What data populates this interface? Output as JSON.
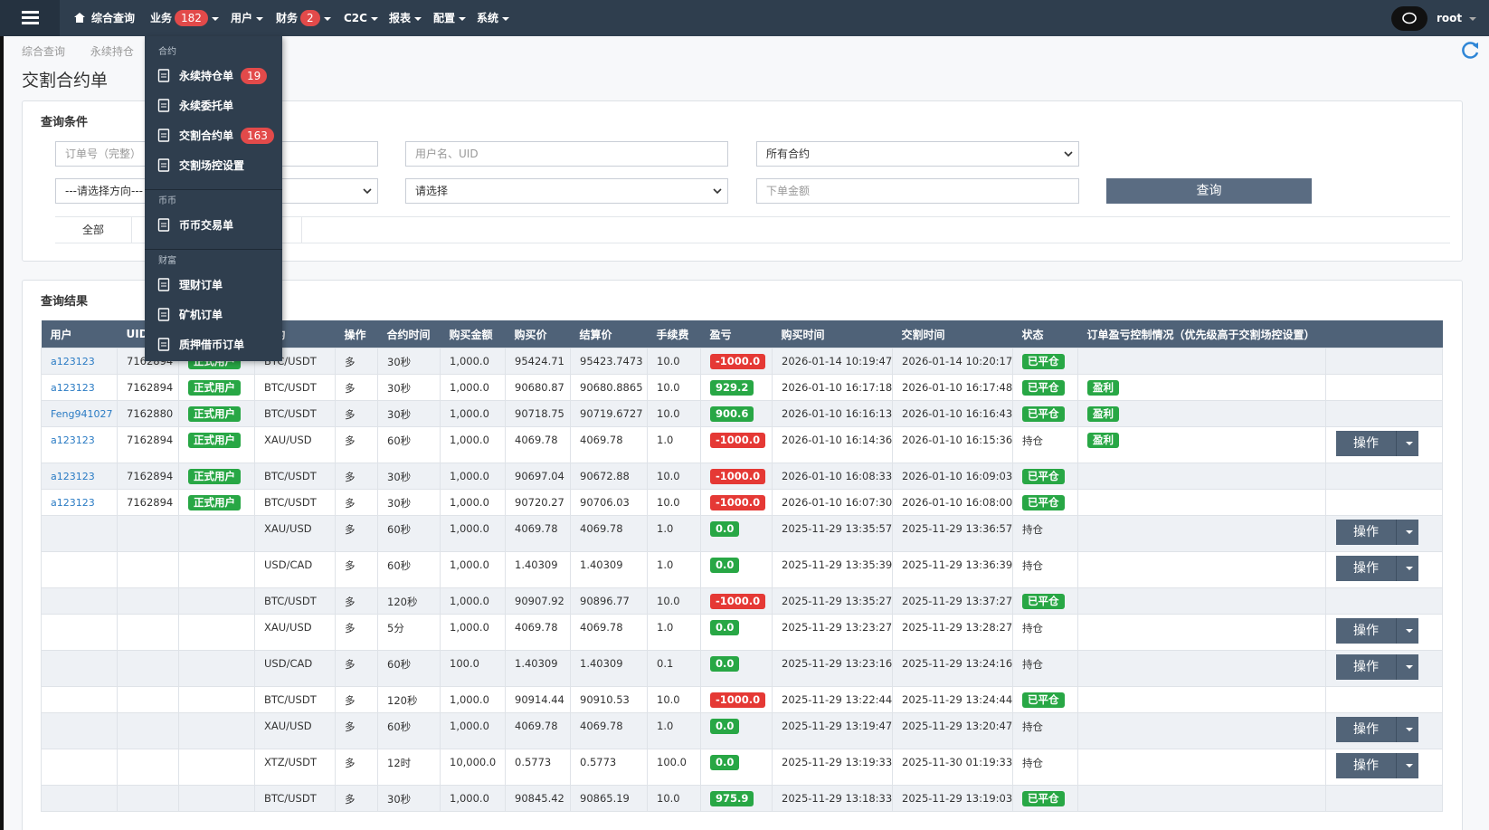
{
  "navbar": {
    "items": [
      {
        "label": "综合查询"
      },
      {
        "label": "业务",
        "badge": "182"
      },
      {
        "label": "用户"
      },
      {
        "label": "财务",
        "badge": "2"
      },
      {
        "label": "C2C"
      },
      {
        "label": "报表"
      },
      {
        "label": "配置"
      },
      {
        "label": "系统"
      }
    ],
    "user": "root"
  },
  "dropdown": {
    "sections": [
      {
        "title": "合约",
        "items": [
          {
            "label": "永续持仓单",
            "badge": "19"
          },
          {
            "label": "永续委托单"
          },
          {
            "label": "交割合约单",
            "badge": "163"
          },
          {
            "label": "交割场控设置"
          }
        ]
      },
      {
        "title": "币币",
        "items": [
          {
            "label": "币币交易单"
          }
        ]
      },
      {
        "title": "财富",
        "items": [
          {
            "label": "理财订单"
          },
          {
            "label": "矿机订单"
          },
          {
            "label": "质押借币订单"
          }
        ]
      }
    ]
  },
  "breadcrumb": [
    "综合查询",
    "永续持仓"
  ],
  "page_title": "交割合约单",
  "query": {
    "title": "查询条件",
    "order_placeholder": "订单号（完整）",
    "user_placeholder": "用户名、UID",
    "contract_select": "所有合约",
    "direction_select": "---请选择方向---",
    "status_select": "请选择",
    "amount_placeholder": "下单金额",
    "button": "查询",
    "tabs": [
      "全部"
    ]
  },
  "results": {
    "title": "查询结果",
    "headers": [
      "用户",
      "UID",
      null,
      "合约",
      "操作",
      "合约时间",
      "购买金额",
      "购买价",
      "结算价",
      "手续费",
      "盈亏",
      "购买时间",
      "交割时间",
      "状态",
      "订单盈亏控制情况（优先级高于交割场控设置）",
      null
    ],
    "rows": [
      [
        "a123123",
        "7162894",
        "正式用户",
        "BTC/USDT",
        "多",
        "30秒",
        "1,000.0",
        "95424.71",
        "95423.7473",
        "10.0",
        "-1000.0",
        "2026-01-14 10:19:47",
        "2026-01-14 10:20:17",
        "已平仓",
        null,
        null
      ],
      [
        "a123123",
        "7162894",
        "正式用户",
        "BTC/USDT",
        "多",
        "30秒",
        "1,000.0",
        "90680.87",
        "90680.8865",
        "10.0",
        "929.2",
        "2026-01-10 16:17:18",
        "2026-01-10 16:17:48",
        "已平仓",
        "盈利",
        null
      ],
      [
        "Feng941027",
        "7162880",
        "正式用户",
        "BTC/USDT",
        "多",
        "30秒",
        "1,000.0",
        "90718.75",
        "90719.6727",
        "10.0",
        "900.6",
        "2026-01-10 16:16:13",
        "2026-01-10 16:16:43",
        "已平仓",
        "盈利",
        null
      ],
      [
        "a123123",
        "7162894",
        "正式用户",
        "XAU/USD",
        "多",
        "60秒",
        "1,000.0",
        "4069.78",
        "4069.78",
        "1.0",
        "-1000.0",
        "2026-01-10 16:14:36",
        "2026-01-10 16:15:36",
        "持仓",
        "盈利",
        "操作"
      ],
      [
        "a123123",
        "7162894",
        "正式用户",
        "BTC/USDT",
        "多",
        "30秒",
        "1,000.0",
        "90697.04",
        "90672.88",
        "10.0",
        "-1000.0",
        "2026-01-10 16:08:33",
        "2026-01-10 16:09:03",
        "已平仓",
        null,
        null
      ],
      [
        "a123123",
        "7162894",
        "正式用户",
        "BTC/USDT",
        "多",
        "30秒",
        "1,000.0",
        "90720.27",
        "90706.03",
        "10.0",
        "-1000.0",
        "2026-01-10 16:07:30",
        "2026-01-10 16:08:00",
        "已平仓",
        null,
        null
      ],
      [
        null,
        null,
        null,
        "XAU/USD",
        "多",
        "60秒",
        "1,000.0",
        "4069.78",
        "4069.78",
        "1.0",
        "0.0",
        "2025-11-29 13:35:57",
        "2025-11-29 13:36:57",
        "持仓",
        null,
        "操作"
      ],
      [
        null,
        null,
        null,
        "USD/CAD",
        "多",
        "60秒",
        "1,000.0",
        "1.40309",
        "1.40309",
        "1.0",
        "0.0",
        "2025-11-29 13:35:39",
        "2025-11-29 13:36:39",
        "持仓",
        null,
        "操作"
      ],
      [
        null,
        null,
        null,
        "BTC/USDT",
        "多",
        "120秒",
        "1,000.0",
        "90907.92",
        "90896.77",
        "10.0",
        "-1000.0",
        "2025-11-29 13:35:27",
        "2025-11-29 13:37:27",
        "已平仓",
        null,
        null
      ],
      [
        null,
        null,
        null,
        "XAU/USD",
        "多",
        "5分",
        "1,000.0",
        "4069.78",
        "4069.78",
        "1.0",
        "0.0",
        "2025-11-29 13:23:27",
        "2025-11-29 13:28:27",
        "持仓",
        null,
        "操作"
      ],
      [
        null,
        null,
        null,
        "USD/CAD",
        "多",
        "60秒",
        "100.0",
        "1.40309",
        "1.40309",
        "0.1",
        "0.0",
        "2025-11-29 13:23:16",
        "2025-11-29 13:24:16",
        "持仓",
        null,
        "操作"
      ],
      [
        null,
        null,
        null,
        "BTC/USDT",
        "多",
        "120秒",
        "1,000.0",
        "90914.44",
        "90910.53",
        "10.0",
        "-1000.0",
        "2025-11-29 13:22:44",
        "2025-11-29 13:24:44",
        "已平仓",
        null,
        null
      ],
      [
        null,
        null,
        null,
        "XAU/USD",
        "多",
        "60秒",
        "1,000.0",
        "4069.78",
        "4069.78",
        "1.0",
        "0.0",
        "2025-11-29 13:19:47",
        "2025-11-29 13:20:47",
        "持仓",
        null,
        "操作"
      ],
      [
        null,
        null,
        null,
        "XTZ/USDT",
        "多",
        "12时",
        "10,000.0",
        "0.5773",
        "0.5773",
        "100.0",
        "0.0",
        "2025-11-29 13:19:33",
        "2025-11-30 01:19:33",
        "持仓",
        null,
        "操作"
      ],
      [
        null,
        null,
        null,
        "BTC/USDT",
        "多",
        "30秒",
        "1,000.0",
        "90845.42",
        "90865.19",
        "10.0",
        "975.9",
        "2025-11-29 13:18:33",
        "2025-11-29 13:19:03",
        "已平仓",
        null,
        null
      ]
    ]
  }
}
